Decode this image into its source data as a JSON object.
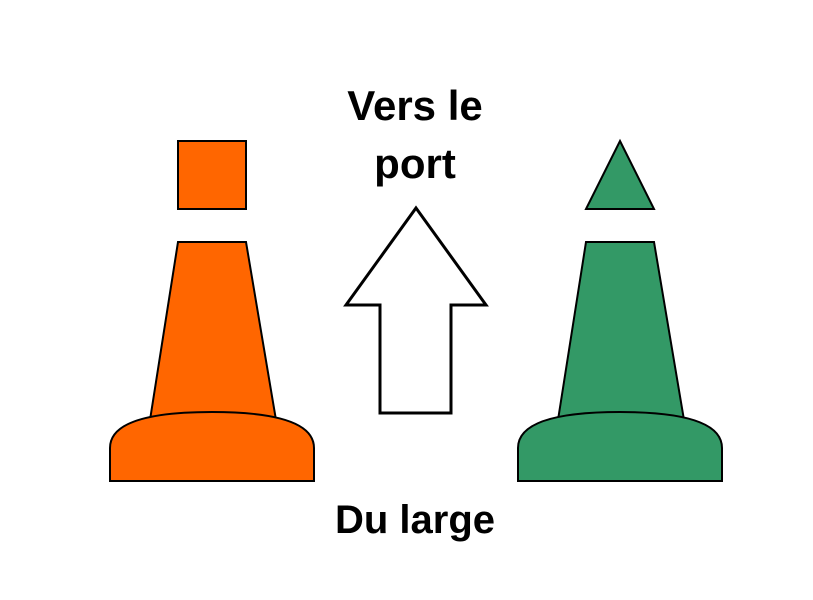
{
  "labels": {
    "top_line1": "Vers le",
    "top_line2": "port",
    "bottom": "Du large"
  },
  "colors": {
    "background": "#ffffff",
    "port_buoy": "#ff6600",
    "starboard_buoy": "#339966",
    "outline": "#000000",
    "arrow_fill": "#ffffff"
  },
  "buoys": [
    {
      "side": "port",
      "color_key": "port_buoy",
      "topmark": "square"
    },
    {
      "side": "starboard",
      "color_key": "starboard_buoy",
      "topmark": "triangle"
    }
  ],
  "arrow": {
    "direction": "up"
  }
}
